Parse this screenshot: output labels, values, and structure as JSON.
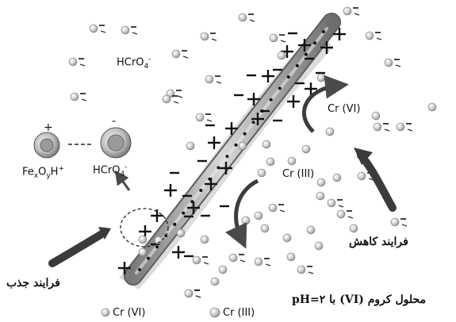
{
  "labels": {
    "hcro4_top": "HCrO",
    "hcro4_top_sub": "4",
    "hcro4_top_sup": "-",
    "iron_complex_fe": "Fe",
    "iron_complex_x": "x",
    "iron_complex_o": "O",
    "iron_complex_y": "y",
    "iron_complex_h": "H",
    "iron_complex_sup": "+",
    "iron_plus_sign": "+",
    "hcro4_left": "HCrO",
    "hcro4_left_sub": "4",
    "hcro4_left_sup": "-",
    "hcro4_minus_sign": "-",
    "cr_vi_right": "Cr (VI)",
    "cr_iii_right": "Cr (III)",
    "reduction_process": "فرایند کاهش",
    "adsorption_process": "فرایند جذب",
    "solution_caption": "محلول کروم (VI) با pH=۲",
    "legend_cr_vi": "Cr (VI)",
    "legend_cr_iii": "Cr (III)"
  },
  "colors": {
    "rod": "#9a9a9a",
    "rod_dots": "#111111",
    "ion_gray": "#c9c9c9",
    "arrow_dark": "#4a4a4a",
    "text": "#111111"
  },
  "icons": {
    "plus_marker": "plus-sign-icon",
    "minus_marker": "minus-sign-icon",
    "ion_sphere": "ion-sphere-icon"
  }
}
